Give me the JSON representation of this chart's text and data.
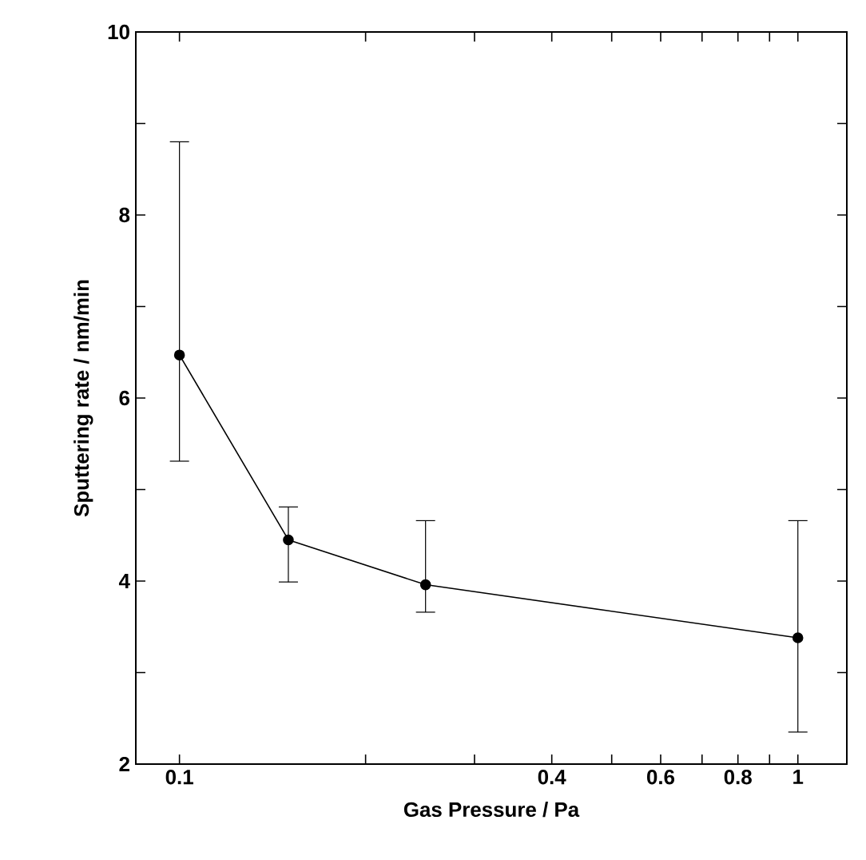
{
  "chart_data": {
    "type": "line",
    "xlabel": "Gas Pressure / Pa",
    "ylabel": "Sputtering rate / nm/min",
    "x": [
      0.1,
      0.15,
      0.25,
      1
    ],
    "series": [
      {
        "color": "#000000",
        "values": [
          6.47,
          4.45,
          3.96,
          3.38
        ],
        "errors": [
          [
            5.31,
            8.8
          ],
          [
            3.99,
            4.81
          ],
          [
            3.66,
            4.66
          ],
          [
            2.35,
            4.66
          ]
        ]
      }
    ],
    "log": "x",
    "marker": "circle",
    "line_style": "solid",
    "grid": false,
    "xlim": [
      0.085,
      1.2
    ],
    "ylim": [
      2,
      10
    ],
    "xticks": [
      0.1,
      {
        "value": 0.2,
        "label": null
      },
      {
        "value": 0.3,
        "label": null
      },
      0.4,
      {
        "value": 0.5,
        "label": null
      },
      0.6,
      {
        "value": 0.7,
        "label": null
      },
      0.8,
      {
        "value": 0.9,
        "label": null
      },
      1
    ],
    "yticks": [
      2,
      {
        "value": 3,
        "label": null
      },
      4,
      {
        "value": 5,
        "label": null
      },
      6,
      {
        "value": 7,
        "label": null
      },
      8,
      {
        "value": 9,
        "label": null
      },
      10
    ]
  }
}
